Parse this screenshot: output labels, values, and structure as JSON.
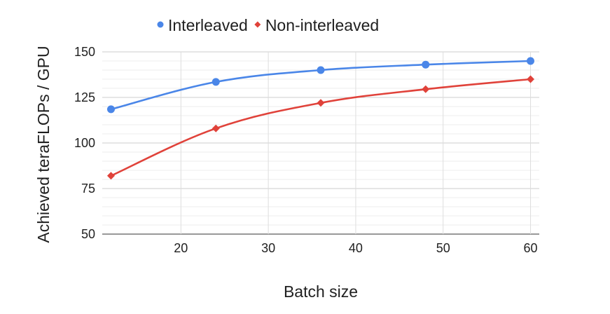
{
  "chart_data": {
    "type": "line",
    "xlabel": "Batch size",
    "ylabel": "Achieved teraFLOPs / GPU",
    "xlim": [
      11,
      61
    ],
    "ylim": [
      50,
      150
    ],
    "x_ticks": [
      20,
      30,
      40,
      50,
      60
    ],
    "y_ticks": [
      50,
      75,
      100,
      125,
      150
    ],
    "grid": true,
    "legend": "top",
    "series": [
      {
        "name": "Interleaved",
        "color": "#4a86e8",
        "marker": "circle",
        "x": [
          12,
          24,
          36,
          48,
          60
        ],
        "values": [
          118.5,
          133.5,
          140,
          143,
          145
        ]
      },
      {
        "name": "Non-interleaved",
        "color": "#e0423a",
        "marker": "diamond",
        "x": [
          12,
          24,
          36,
          48,
          60
        ],
        "values": [
          82,
          108,
          122,
          129.5,
          135
        ]
      }
    ]
  }
}
